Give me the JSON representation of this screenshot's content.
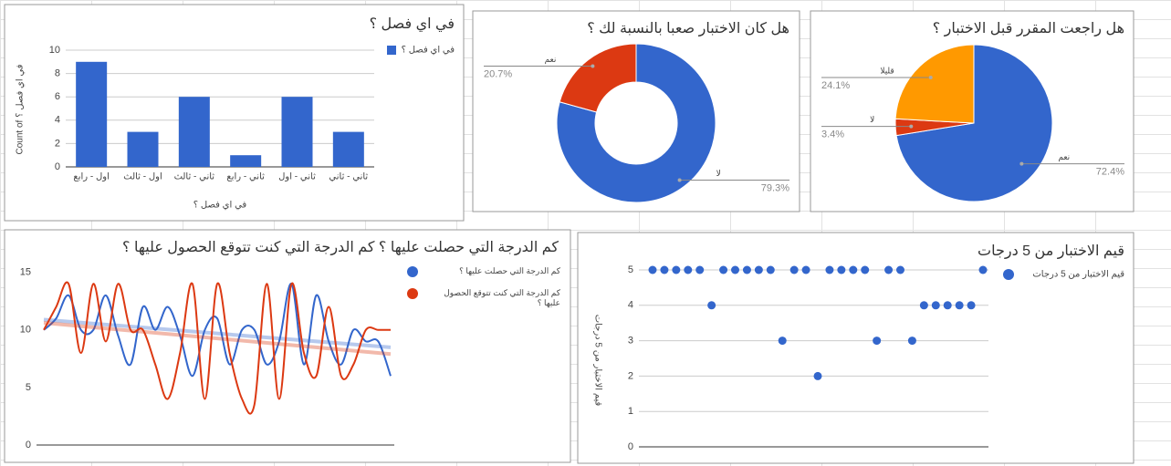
{
  "chart_data": [
    {
      "type": "bar",
      "title": "في اي فصل ؟",
      "xlabel": "في اي فصل ؟",
      "ylabel": "Count of في اي فصل ؟",
      "categories": [
        "اول - رابع",
        "اول - ثالث",
        "ثاني - ثالث",
        "ثاني - رابع",
        "ثاني - اول",
        "ثاني - ثاني"
      ],
      "series": [
        {
          "name": "في اي فصل ؟",
          "color": "#3366cc",
          "values": [
            9,
            3,
            6,
            1,
            6,
            3
          ]
        }
      ],
      "ylim": [
        0,
        10
      ],
      "yticks": [
        0,
        2,
        4,
        6,
        8,
        10
      ],
      "grid": true
    },
    {
      "type": "donut",
      "title": "هل كان الاختبار صعبا بالنسبة لك ؟",
      "categories": [
        "لا",
        "نعم"
      ],
      "values": [
        79.3,
        20.7
      ],
      "value_labels": [
        "79.3%",
        "20.7%"
      ],
      "colors": [
        "#3366cc",
        "#dc3912"
      ]
    },
    {
      "type": "pie",
      "title": "هل راجعت المقرر قبل الاختبار ؟",
      "categories": [
        "نعم",
        "لا",
        "قليلا"
      ],
      "values": [
        72.4,
        3.4,
        24.1
      ],
      "value_labels": [
        "72.4%",
        "3.4%",
        "24.1%"
      ],
      "colors": [
        "#3366cc",
        "#dc3912",
        "#ff9900"
      ]
    },
    {
      "type": "line",
      "title": "كم الدرجة التي حصلت عليها ؟ كم الدرجة التي كنت تتوقع الحصول عليها ؟",
      "series": [
        {
          "name": "كم الدرجة التي حصلت عليها ؟",
          "color": "#3366cc",
          "values": [
            10,
            11,
            13,
            10,
            10,
            13,
            9.5,
            7,
            12,
            10,
            12,
            9.5,
            6,
            10,
            11,
            7,
            10,
            10,
            7,
            9,
            14,
            7,
            13,
            9,
            7,
            10,
            9,
            9,
            6
          ]
        },
        {
          "name": "كم الدرجة التي كنت تتوقع الحصول عليها ؟",
          "color": "#dc3912",
          "values": [
            10,
            12,
            14,
            8,
            14,
            9,
            14,
            10,
            10,
            7,
            4,
            8,
            14,
            4,
            14,
            8,
            4,
            3.5,
            14,
            4,
            14,
            8,
            6,
            12,
            6,
            7,
            10,
            10,
            10
          ]
        }
      ],
      "ylim": [
        0,
        16
      ],
      "yticks": [
        0,
        5,
        10,
        15
      ],
      "trendline": true
    },
    {
      "type": "scatter",
      "title": "قيم الاختبار من 5 درجات",
      "ylabel": "قيم الاختبار من 5 درجات",
      "series": [
        {
          "name": "قيم الاختبار من 5 درجات",
          "color": "#3366cc",
          "values": [
            5,
            5,
            5,
            5,
            5,
            4,
            5,
            5,
            5,
            5,
            5,
            3,
            5,
            5,
            2,
            5,
            5,
            5,
            5,
            3,
            5,
            5,
            3,
            4,
            4,
            4,
            4,
            4,
            5
          ]
        }
      ],
      "ylim": [
        0,
        5
      ],
      "yticks": [
        0,
        1,
        2,
        3,
        4,
        5
      ],
      "grid": true
    }
  ]
}
